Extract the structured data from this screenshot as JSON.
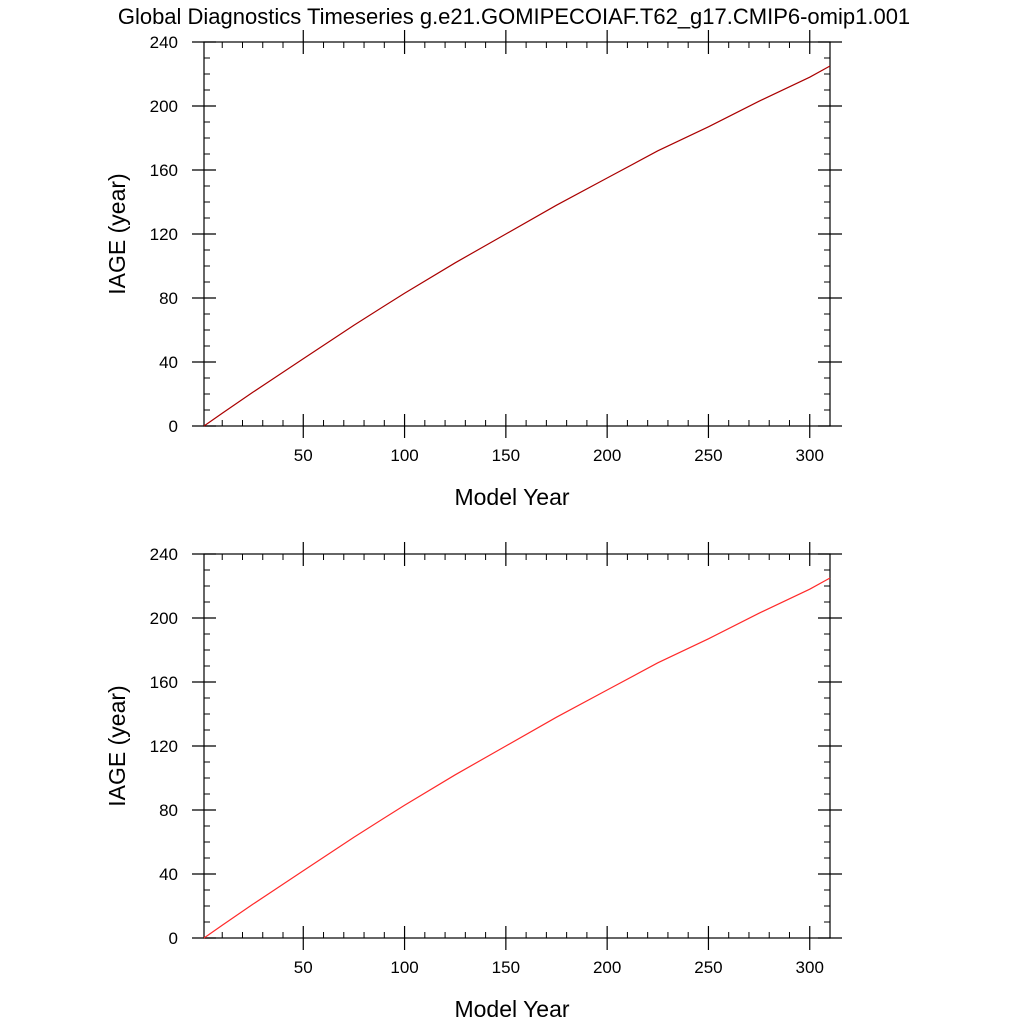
{
  "figure": {
    "title": "Global Diagnostics Timeseries g.e21.GOMIPECOIAF.T62_g17.CMIP6-omip1.001"
  },
  "chart_data": [
    {
      "type": "line",
      "xlabel": "Model Year",
      "ylabel": "IAGE (year)",
      "xlim": [
        1,
        310
      ],
      "ylim": [
        0,
        240
      ],
      "xticks": [
        50,
        100,
        150,
        200,
        250,
        300
      ],
      "yticks": [
        0,
        40,
        80,
        120,
        160,
        200,
        240
      ],
      "grid": false,
      "series": [
        {
          "color": "#aa0000",
          "x": [
            1,
            10,
            25,
            50,
            75,
            100,
            125,
            150,
            175,
            200,
            225,
            250,
            275,
            300,
            310
          ],
          "y": [
            0,
            8,
            21,
            42,
            63,
            83,
            102,
            120,
            138,
            155,
            172,
            187,
            203,
            218,
            225
          ]
        }
      ]
    },
    {
      "type": "line",
      "xlabel": "Model Year",
      "ylabel": "IAGE (year)",
      "xlim": [
        1,
        310
      ],
      "ylim": [
        0,
        240
      ],
      "xticks": [
        50,
        100,
        150,
        200,
        250,
        300
      ],
      "yticks": [
        0,
        40,
        80,
        120,
        160,
        200,
        240
      ],
      "grid": false,
      "series": [
        {
          "color": "#ff2a2a",
          "x": [
            1,
            10,
            25,
            50,
            75,
            100,
            125,
            150,
            175,
            200,
            225,
            250,
            275,
            300,
            310
          ],
          "y": [
            0,
            8,
            21,
            42,
            63,
            83,
            102,
            120,
            138,
            155,
            172,
            187,
            203,
            218,
            225
          ]
        }
      ]
    }
  ]
}
